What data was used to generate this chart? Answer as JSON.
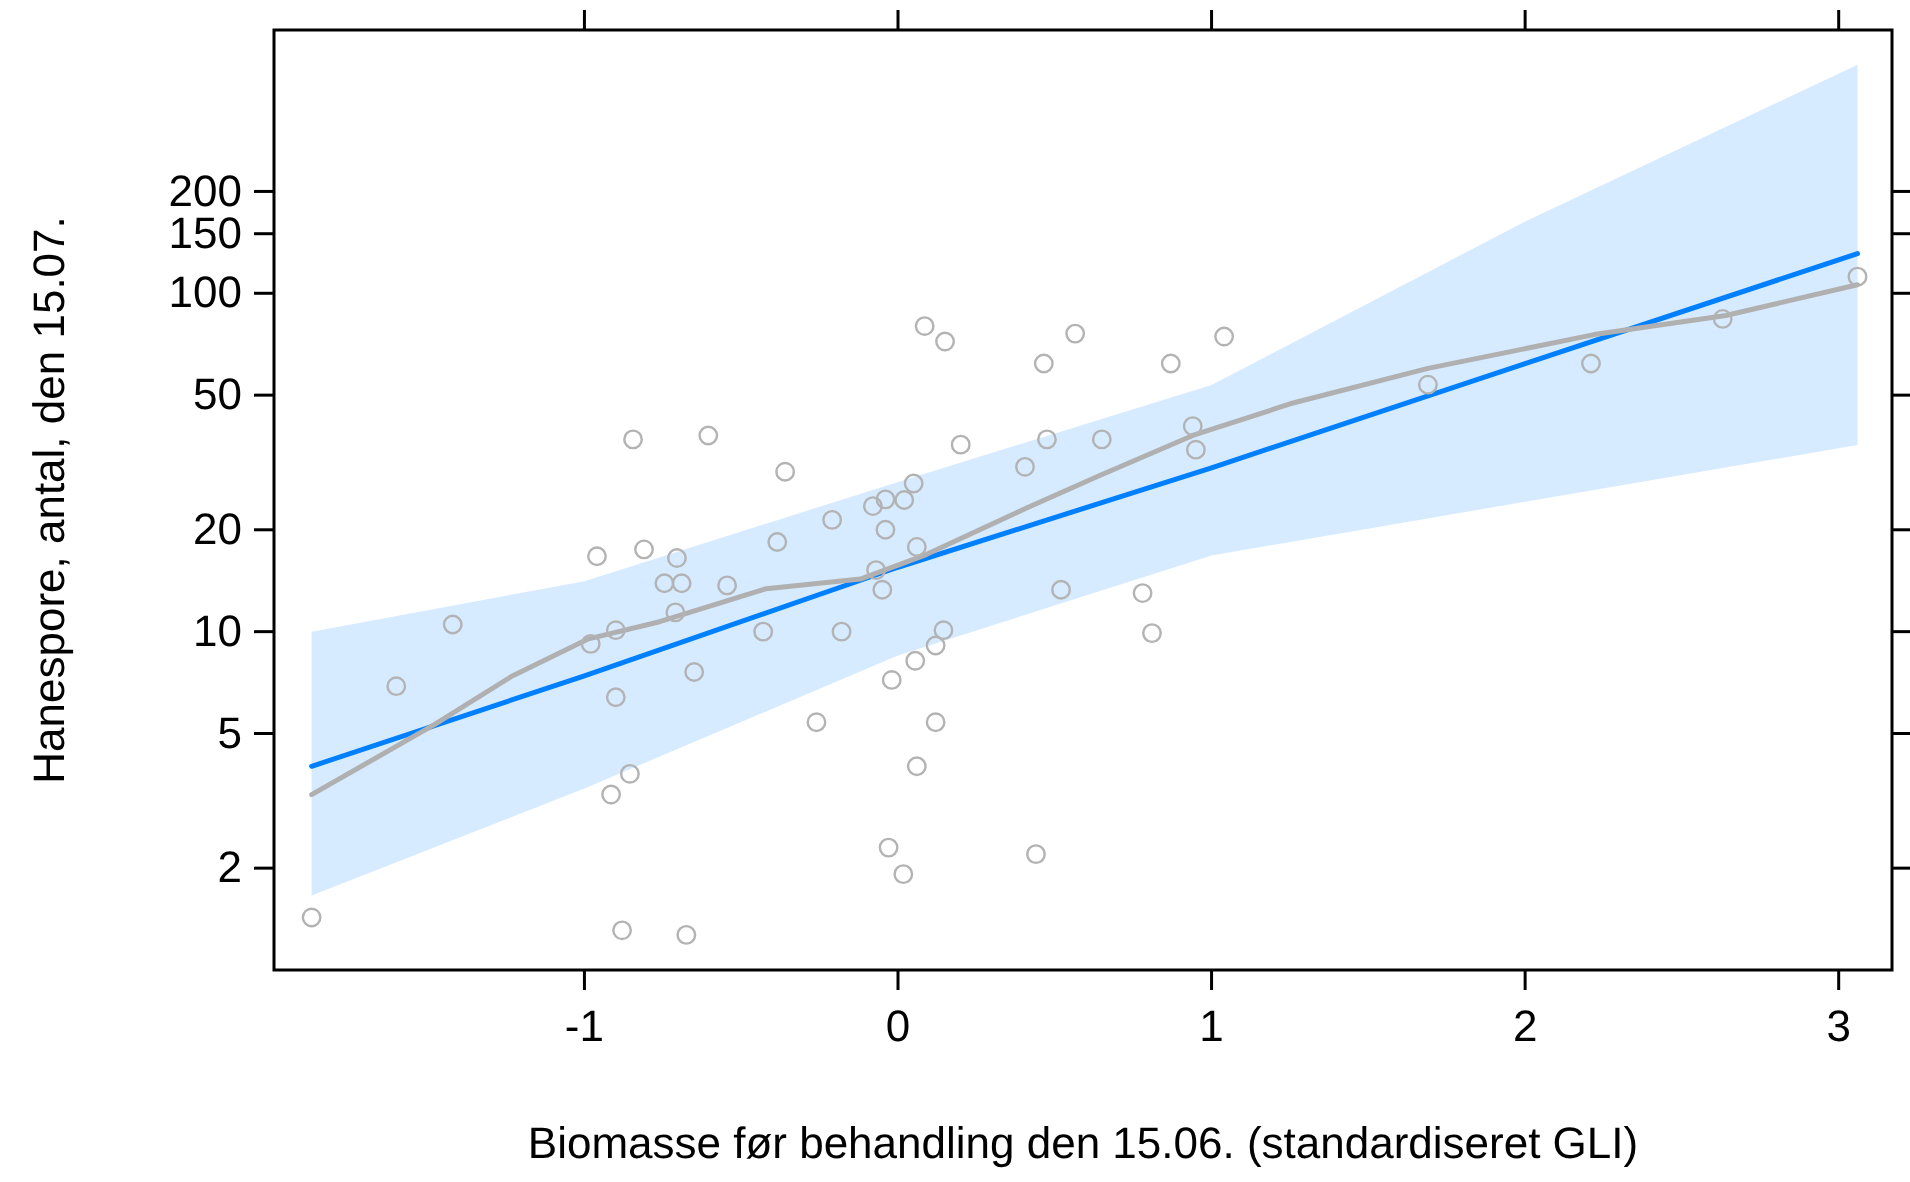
{
  "chart_data": {
    "type": "scatter",
    "xlabel": "Biomasse før behandling den 15.06. (standardiseret GLI)",
    "ylabel": "Hanespore, antal, den 15.07.",
    "log": "y",
    "grid": false,
    "xlim": [
      -1.99,
      3.17
    ],
    "ylim": [
      1,
      600
    ],
    "xticks": [
      -1,
      0,
      1,
      2,
      3
    ],
    "yticks": [
      2,
      5,
      10,
      20,
      50,
      100,
      150,
      200
    ],
    "series": [
      {
        "type": "line",
        "color": "#0080ff",
        "marker": "none",
        "line_style": "solid",
        "x": [
          -1.87,
          -1,
          0,
          1,
          2,
          3.06
        ],
        "values": [
          4.0,
          7.4,
          15.5,
          30.5,
          62,
          131
        ],
        "lower": [
          1.66,
          3.44,
          8.5,
          16.8,
          24.2,
          35.6
        ],
        "upper": [
          10,
          14.1,
          27.7,
          53.6,
          163,
          474
        ]
      },
      {
        "type": "line",
        "color": "#b0b0b0",
        "marker": "none",
        "line_style": "solid",
        "x": [
          -1.87,
          -1.48,
          -1.23,
          -0.99,
          -0.76,
          -0.42,
          -0.12,
          0.09,
          0.41,
          0.645,
          0.94,
          1.26,
          1.69,
          2.22,
          2.64,
          3.06
        ],
        "values": [
          3.3,
          5.3,
          7.4,
          9.5,
          10.7,
          13.4,
          14.3,
          16.9,
          23.2,
          29,
          38,
          47.4,
          60,
          75.5,
          86,
          106
        ]
      },
      {
        "type": "scatter",
        "color": "#b3b3b3",
        "marker": "circle",
        "x": [
          -1.87,
          -1.6,
          -1.42,
          -0.96,
          -0.98,
          -0.9,
          -0.9,
          -0.855,
          -0.915,
          -0.88,
          -0.675,
          -0.845,
          -0.81,
          -0.705,
          -0.745,
          -0.69,
          -0.71,
          -0.65,
          -0.605,
          -0.545,
          -0.36,
          -0.385,
          -0.43,
          -0.26,
          -0.21,
          -0.18,
          -0.08,
          -0.04,
          0.02,
          0.05,
          -0.04,
          -0.07,
          -0.05,
          0.06,
          0.12,
          0.145,
          0.055,
          -0.02,
          0.12,
          0.06,
          -0.03,
          0.017,
          0.44,
          0.085,
          0.15,
          0.2,
          0.405,
          0.475,
          0.465,
          0.565,
          0.52,
          0.65,
          0.87,
          1.04,
          0.94,
          0.95,
          0.78,
          0.81,
          1.69,
          2.21,
          2.63,
          3.06
        ],
        "values": [
          1.43,
          6.9,
          10.5,
          16.7,
          9.2,
          10.1,
          6.4,
          3.8,
          3.3,
          1.31,
          1.27,
          37,
          17.5,
          16.5,
          13.9,
          13.9,
          11.4,
          7.6,
          38,
          13.7,
          29.7,
          18.4,
          10,
          5.4,
          21.4,
          10,
          23.5,
          24.6,
          24.5,
          27.4,
          20,
          15.2,
          13.3,
          17.8,
          9.1,
          10.1,
          8.2,
          7.2,
          5.4,
          4.0,
          2.3,
          1.92,
          2.2,
          80,
          72,
          35.7,
          30.7,
          37,
          62,
          76,
          13.3,
          37,
          62,
          74.5,
          40.5,
          34.5,
          13,
          9.9,
          53.7,
          62,
          84,
          112
        ]
      }
    ]
  }
}
